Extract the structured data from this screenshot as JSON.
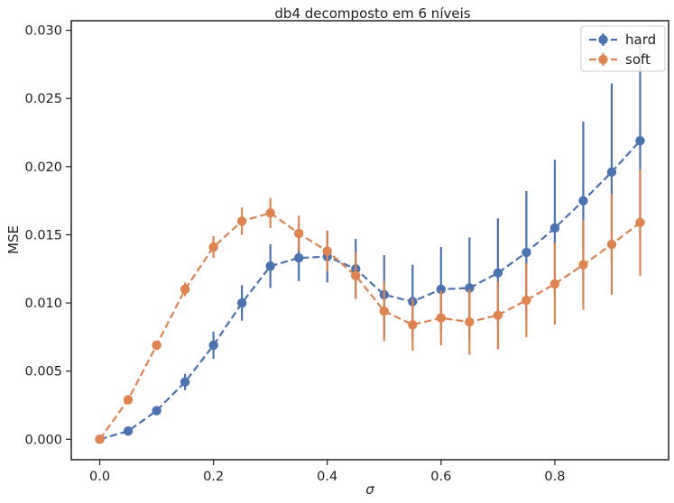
{
  "chart_data": {
    "type": "line",
    "title": "db4 decomposto em 6 níveis",
    "xlabel": "σ",
    "ylabel": "MSE",
    "xlim": [
      -0.05,
      1.0
    ],
    "ylim": [
      -0.0015,
      0.0307
    ],
    "xticks": [
      0.0,
      0.2,
      0.4,
      0.6,
      0.8
    ],
    "xtick_labels": [
      "0.0",
      "0.2",
      "0.4",
      "0.6",
      "0.8"
    ],
    "yticks": [
      0.0,
      0.005,
      0.01,
      0.015,
      0.02,
      0.025,
      0.03
    ],
    "ytick_labels": [
      "0.000",
      "0.005",
      "0.010",
      "0.015",
      "0.020",
      "0.025",
      "0.030"
    ],
    "grid": false,
    "legend_position": "top-right",
    "x": [
      0.0,
      0.05,
      0.1,
      0.15,
      0.2,
      0.25,
      0.3,
      0.35,
      0.4,
      0.45,
      0.5,
      0.55,
      0.6,
      0.65,
      0.7,
      0.75,
      0.8,
      0.85,
      0.9,
      0.95
    ],
    "series": [
      {
        "name": "hard",
        "color": "#4c72b0",
        "values": [
          0.0,
          0.0006,
          0.0021,
          0.0042,
          0.0069,
          0.01,
          0.0127,
          0.0133,
          0.0134,
          0.0125,
          0.0106,
          0.0101,
          0.011,
          0.0111,
          0.0122,
          0.0137,
          0.0155,
          0.0175,
          0.0196,
          0.0219
        ],
        "errors": [
          0.0,
          0.0001,
          0.0002,
          0.0006,
          0.001,
          0.0013,
          0.0016,
          0.0017,
          0.0019,
          0.0022,
          0.0029,
          0.0027,
          0.0031,
          0.0037,
          0.004,
          0.0045,
          0.005,
          0.0058,
          0.0065,
          0.0072
        ]
      },
      {
        "name": "soft",
        "color": "#dd8452",
        "values": [
          0.0,
          0.0029,
          0.0069,
          0.011,
          0.0141,
          0.016,
          0.0166,
          0.0151,
          0.0138,
          0.012,
          0.0094,
          0.0084,
          0.0089,
          0.0086,
          0.0091,
          0.0102,
          0.0114,
          0.0128,
          0.0143,
          0.0159
        ],
        "errors": [
          0.0,
          0.0002,
          0.0002,
          0.0005,
          0.0008,
          0.001,
          0.0011,
          0.0013,
          0.0015,
          0.0017,
          0.0022,
          0.0019,
          0.002,
          0.0024,
          0.0025,
          0.0027,
          0.003,
          0.0033,
          0.0037,
          0.0039
        ]
      }
    ]
  }
}
